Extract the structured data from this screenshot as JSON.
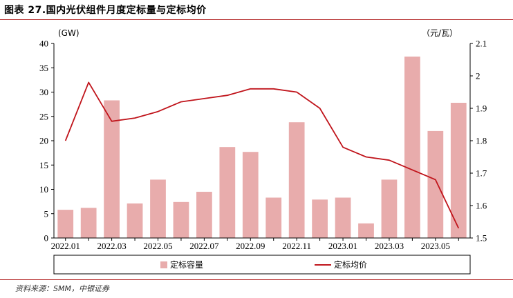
{
  "figure": {
    "title": "图表 27.国内光伏组件月度定标量与定标均价",
    "source": "资料来源：SMM，中银证券"
  },
  "colors": {
    "bar": "#e8acac",
    "line": "#c0141b",
    "axis": "#000000",
    "rule": "#b01c1c"
  },
  "chart_data": {
    "type": "bar+line",
    "categories": [
      "2022.01",
      "2022.02",
      "2022.03",
      "2022.04",
      "2022.05",
      "2022.06",
      "2022.07",
      "2022.08",
      "2022.09",
      "2022.10",
      "2022.11",
      "2022.12",
      "2023.01",
      "2023.02",
      "2023.03",
      "2023.04",
      "2023.05",
      "2023.06"
    ],
    "x_tick_labels": [
      "2022.01",
      "2022.03",
      "2022.05",
      "2022.07",
      "2022.09",
      "2022.11",
      "2023.01",
      "2023.03",
      "2023.05"
    ],
    "series": [
      {
        "name": "定标容量",
        "type": "bar",
        "axis": "left",
        "values": [
          5.8,
          6.2,
          28.3,
          7.1,
          12.0,
          7.4,
          9.5,
          18.7,
          17.7,
          8.3,
          23.8,
          7.9,
          8.3,
          3.0,
          12.0,
          37.3,
          22.0,
          27.8
        ]
      },
      {
        "name": "定标均价",
        "type": "line",
        "axis": "right",
        "values": [
          1.8,
          1.98,
          1.86,
          1.87,
          1.89,
          1.92,
          1.93,
          1.94,
          1.96,
          1.96,
          1.95,
          1.9,
          1.78,
          1.75,
          1.74,
          1.71,
          1.68,
          1.53
        ]
      }
    ],
    "left_axis": {
      "unit": "(GW)",
      "ylim": [
        0,
        40
      ],
      "ticks": [
        "0",
        "5",
        "10",
        "15",
        "20",
        "25",
        "30",
        "35",
        "40"
      ]
    },
    "right_axis": {
      "unit": "（元/瓦）",
      "ylim": [
        1.5,
        2.1
      ],
      "ticks": [
        "1.5",
        "1.6",
        "1.7",
        "1.8",
        "1.9",
        "2",
        "2.1"
      ]
    },
    "legend_position": "bottom",
    "grid": false
  }
}
